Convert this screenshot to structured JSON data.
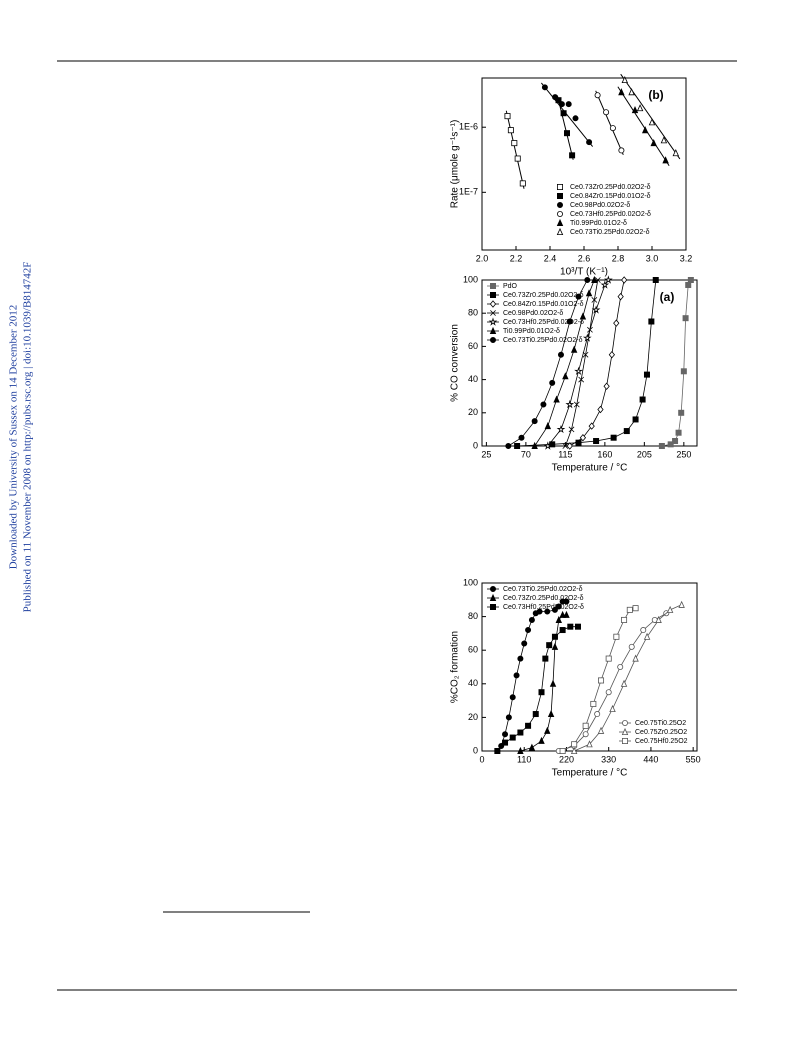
{
  "sidebar": {
    "lines": [
      "Downloaded by University of Sussex on 14 December 2012",
      "Published on 11 November 2008 on http://pubs.rsc.org | doi:10.1039/B814742F"
    ]
  },
  "chart_data": [
    {
      "type": "scatter",
      "panel_label": "(b)",
      "x_label": "10³/T (K⁻¹)",
      "y_label": "Rate (μmole g⁻¹s⁻¹)",
      "xlim": [
        2.0,
        3.2
      ],
      "xticks": [
        {
          "value": 2.0,
          "label": "2.0"
        },
        2.2,
        2.4,
        2.6,
        2.8,
        {
          "value": 3.0,
          "label": "3.0"
        },
        3.2
      ],
      "ylim": [
        1.3e-08,
        5.7e-06
      ],
      "ylog": true,
      "yticks": [
        {
          "value": 1e-07,
          "label": "1E-7"
        },
        {
          "value": 1e-06,
          "label": "1E-6"
        }
      ],
      "fit_lines": true,
      "legend": "lower right",
      "series": [
        {
          "name": "Ce0.73Zr0.25Pd0.02O2-δ",
          "marker": "square-open",
          "color": "#000000",
          "x": [
            2.15,
            2.17,
            2.19,
            2.21,
            2.24
          ],
          "values": [
            1.48e-06,
            9e-07,
            5.7e-07,
            3.3e-07,
            1.37e-07
          ]
        },
        {
          "name": "Ce0.84Zr0.15Pd0.01O2-δ",
          "marker": "square",
          "color": "#000000",
          "x": [
            2.45,
            2.48,
            2.5,
            2.53
          ],
          "values": [
            2.6e-06,
            1.64e-06,
            8.1e-07,
            3.7e-07
          ]
        },
        {
          "name": "Ce0.98Pd0.02O2-δ",
          "marker": "circle",
          "color": "#000000",
          "x": [
            2.37,
            2.43,
            2.47,
            2.51,
            2.55,
            2.63
          ],
          "values": [
            4.1e-06,
            2.9e-06,
            2.26e-06,
            2.26e-06,
            1.37e-06,
            5.9e-07
          ]
        },
        {
          "name": "Ce0.73Hf0.25Pd0.02O2-δ",
          "marker": "circle-open",
          "color": "#000000",
          "x": [
            2.68,
            2.73,
            2.77,
            2.82
          ],
          "values": [
            3.1e-06,
            1.7e-06,
            9.7e-07,
            4.4e-07
          ]
        },
        {
          "name": "Ti0.99Pd0.01O2-δ",
          "marker": "triangle",
          "color": "#000000",
          "x": [
            2.82,
            2.9,
            2.96,
            3.01,
            3.08
          ],
          "values": [
            3.45e-06,
            1.83e-06,
            9e-07,
            5.7e-07,
            3.1e-07
          ]
        },
        {
          "name": "Ce0.73Ti0.25Pd0.02O2-δ",
          "marker": "triangle-open",
          "color": "#000000",
          "x": [
            2.84,
            2.88,
            2.93,
            3.0,
            3.07,
            3.14
          ],
          "values": [
            5.3e-06,
            3.45e-06,
            1.96e-06,
            1.19e-06,
            6.3e-07,
            4e-07
          ]
        }
      ]
    },
    {
      "type": "line",
      "panel_label": "(a)",
      "x_label": "Temperature / °C",
      "y_label": "% CO conversion",
      "xlim": [
        20,
        265
      ],
      "xticks": [
        25,
        70,
        115,
        160,
        205,
        250
      ],
      "ylim": [
        0,
        100
      ],
      "yticks": [
        0,
        20,
        40,
        60,
        80,
        100
      ],
      "legend": "upper left",
      "series": [
        {
          "name": "PdO",
          "marker": "square",
          "color": "#666666",
          "x": [
            225,
            235,
            240,
            244,
            247,
            250,
            252,
            255,
            258
          ],
          "values": [
            0,
            1,
            3,
            8,
            20,
            45,
            77,
            97,
            100
          ]
        },
        {
          "name": "Ce0.73Zr0.25Pd0.02O2-δ",
          "marker": "square",
          "color": "#000000",
          "x": [
            60,
            100,
            130,
            150,
            170,
            185,
            195,
            203,
            208,
            213,
            218
          ],
          "values": [
            0,
            1,
            2,
            3,
            5,
            9,
            16,
            28,
            43,
            75,
            100
          ]
        },
        {
          "name": "Ce0.84Zr0.15Pd0.01O2-δ",
          "marker": "diamond-open",
          "color": "#000000",
          "x": [
            120,
            135,
            145,
            155,
            162,
            168,
            173,
            178,
            182
          ],
          "values": [
            0,
            5,
            12,
            22,
            36,
            55,
            74,
            90,
            100
          ]
        },
        {
          "name": "Ce0.98Pd0.02O2-δ",
          "marker": "x",
          "color": "#000000",
          "x": [
            115,
            122,
            128,
            133,
            138,
            143,
            148,
            152
          ],
          "values": [
            0,
            10,
            25,
            40,
            55,
            70,
            88,
            100
          ]
        },
        {
          "name": "Ce0.73Hf0.25Pd0.02O2-δ",
          "marker": "star",
          "color": "#000000",
          "x": [
            95,
            110,
            120,
            130,
            140,
            150,
            160,
            164
          ],
          "values": [
            0,
            10,
            25,
            45,
            65,
            82,
            97,
            100
          ]
        },
        {
          "name": "Ti0.99Pd0.01O2-δ",
          "marker": "triangle",
          "color": "#000000",
          "x": [
            80,
            95,
            105,
            115,
            125,
            135,
            142,
            148
          ],
          "values": [
            0,
            12,
            28,
            42,
            58,
            78,
            92,
            100
          ]
        },
        {
          "name": "Ce0.73Ti0.25Pd0.02O2-δ",
          "marker": "circle",
          "color": "#000000",
          "x": [
            50,
            65,
            80,
            90,
            100,
            110,
            120,
            130,
            140
          ],
          "values": [
            0,
            5,
            15,
            25,
            38,
            55,
            75,
            90,
            100
          ]
        }
      ]
    },
    {
      "type": "line",
      "x_label": "Temperature / °C",
      "y_label": "%CO₂ formation",
      "xlim": [
        0,
        560
      ],
      "xticks": [
        0,
        110,
        220,
        330,
        440,
        550
      ],
      "ylim": [
        0,
        100
      ],
      "yticks": [
        0,
        20,
        40,
        60,
        80,
        100
      ],
      "series": [
        {
          "name": "Ce0.73Ti0.25Pd0.02O2-δ",
          "marker": "circle",
          "color": "#000000",
          "legend": "upper left",
          "x": [
            40,
            50,
            60,
            70,
            80,
            90,
            100,
            110,
            120,
            130,
            140,
            150,
            170,
            190,
            200,
            210,
            220
          ],
          "values": [
            0,
            3,
            10,
            20,
            32,
            45,
            55,
            64,
            72,
            78,
            82,
            83,
            83,
            84,
            86,
            89,
            89
          ]
        },
        {
          "name": "Ce0.73Zr0.25Pd0.02O2-δ",
          "marker": "triangle",
          "color": "#000000",
          "legend": "upper left",
          "x": [
            100,
            130,
            155,
            170,
            180,
            185,
            190,
            200,
            210,
            220
          ],
          "values": [
            0,
            2,
            6,
            12,
            22,
            40,
            62,
            78,
            81,
            81
          ]
        },
        {
          "name": "Ce0.73Hf0.25Pd0.02O2-δ",
          "marker": "square",
          "color": "#000000",
          "legend": "upper left",
          "x": [
            40,
            60,
            80,
            100,
            120,
            140,
            155,
            165,
            175,
            190,
            210,
            230,
            250
          ],
          "values": [
            0,
            5,
            8,
            11,
            15,
            22,
            35,
            55,
            63,
            68,
            72,
            74,
            74
          ]
        },
        {
          "name": "Ce0.75Ti0.25O2",
          "marker": "circle-open",
          "color": "#555555",
          "legend": "lower right",
          "x": [
            200,
            240,
            270,
            300,
            330,
            360,
            390,
            420,
            450,
            480
          ],
          "values": [
            0,
            3,
            10,
            22,
            35,
            50,
            62,
            72,
            78,
            82
          ]
        },
        {
          "name": "Ce0.75Zr0.25O2",
          "marker": "triangle-open",
          "color": "#555555",
          "legend": "lower right",
          "x": [
            240,
            280,
            310,
            340,
            370,
            400,
            430,
            460,
            490,
            520
          ],
          "values": [
            0,
            4,
            12,
            25,
            40,
            55,
            68,
            78,
            84,
            87
          ]
        },
        {
          "name": "Ce0.75Hf0.25O2",
          "marker": "square-open",
          "color": "#555555",
          "legend": "lower right",
          "x": [
            210,
            240,
            270,
            290,
            310,
            330,
            350,
            370,
            385,
            400
          ],
          "values": [
            0,
            4,
            15,
            28,
            42,
            55,
            68,
            78,
            84,
            85
          ]
        }
      ]
    }
  ]
}
